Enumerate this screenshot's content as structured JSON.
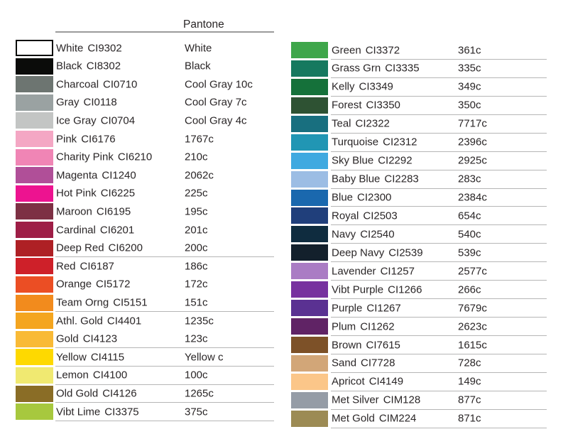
{
  "header": {
    "pantone_label": "Pantone"
  },
  "columns": {
    "left": {
      "rows": [
        {
          "name": "White",
          "code": "CI9302",
          "pantone": "White",
          "hex": "#ffffff",
          "underline": false
        },
        {
          "name": "Black",
          "code": "CI8302",
          "pantone": "Black",
          "hex": "#0b0c0a",
          "underline": false
        },
        {
          "name": "Charcoal",
          "code": "CI0710",
          "pantone": "Cool Gray 10c",
          "hex": "#6d7571",
          "underline": false
        },
        {
          "name": "Gray",
          "code": "CI0118",
          "pantone": "Cool Gray 7c",
          "hex": "#9aa2a2",
          "underline": false
        },
        {
          "name": "Ice Gray",
          "code": "CI0704",
          "pantone": "Cool Gray 4c",
          "hex": "#c3c5c4",
          "underline": false
        },
        {
          "name": "Pink",
          "code": "CI6176",
          "pantone": "1767c",
          "hex": "#f4a7c4",
          "underline": false
        },
        {
          "name": "Charity Pink",
          "code": "CI6210",
          "pantone": "210c",
          "hex": "#f085b5",
          "underline": false
        },
        {
          "name": "Magenta",
          "code": "CI1240",
          "pantone": "2062c",
          "hex": "#b04f98",
          "underline": false
        },
        {
          "name": "Hot Pink",
          "code": "CI6225",
          "pantone": "225c",
          "hex": "#ed1390",
          "underline": false
        },
        {
          "name": "Maroon",
          "code": "CI6195",
          "pantone": "195c",
          "hex": "#7d3044",
          "underline": false
        },
        {
          "name": "Cardinal",
          "code": "CI6201",
          "pantone": "201c",
          "hex": "#9e1e46",
          "underline": false
        },
        {
          "name": "Deep Red",
          "code": "CI6200",
          "pantone": "200c",
          "hex": "#ae2025",
          "underline": true
        },
        {
          "name": "Red",
          "code": "CI6187",
          "pantone": "186c",
          "hex": "#ce2029",
          "underline": false
        },
        {
          "name": "Orange",
          "code": "CI5172",
          "pantone": "172c",
          "hex": "#eb4e24",
          "underline": false
        },
        {
          "name": "Team Orng",
          "code": "CI5151",
          "pantone": "151c",
          "hex": "#f28b1d",
          "underline": true
        },
        {
          "name": "Athl. Gold",
          "code": "CI4401",
          "pantone": "1235c",
          "hex": "#f4a51f",
          "underline": false
        },
        {
          "name": "Gold",
          "code": "CI4123",
          "pantone": "123c",
          "hex": "#f9ba36",
          "underline": true
        },
        {
          "name": "Yellow",
          "code": "CI4115",
          "pantone": "Yellow c",
          "hex": "#fed900",
          "underline": true
        },
        {
          "name": "Lemon",
          "code": "CI4100",
          "pantone": "100c",
          "hex": "#f0e971",
          "underline": true
        },
        {
          "name": "Old Gold",
          "code": "CI4126",
          "pantone": "1265c",
          "hex": "#8a6d26",
          "underline": true
        },
        {
          "name": "Vibt Lime",
          "code": "CI3375",
          "pantone": "375c",
          "hex": "#a7c83e",
          "underline": true
        }
      ]
    },
    "right": {
      "rows": [
        {
          "name": "Green",
          "code": "CI3372",
          "pantone": "361c",
          "hex": "#3ea64a",
          "underline": true
        },
        {
          "name": "Grass Grn",
          "code": "CI3335",
          "pantone": "335c",
          "hex": "#16795f",
          "underline": true
        },
        {
          "name": "Kelly",
          "code": "CI3349",
          "pantone": "349c",
          "hex": "#15713a",
          "underline": true
        },
        {
          "name": "Forest",
          "code": "CI3350",
          "pantone": "350c",
          "hex": "#2e5233",
          "underline": true
        },
        {
          "name": "Teal",
          "code": "CI2322",
          "pantone": "7717c",
          "hex": "#186f7f",
          "underline": true
        },
        {
          "name": "Turquoise",
          "code": "CI2312",
          "pantone": "2396c",
          "hex": "#2196b4",
          "underline": true
        },
        {
          "name": "Sky Blue",
          "code": "CI2292",
          "pantone": "2925c",
          "hex": "#3fa9e0",
          "underline": true
        },
        {
          "name": "Baby Blue",
          "code": "CI2283",
          "pantone": "283c",
          "hex": "#9cbde4",
          "underline": true
        },
        {
          "name": "Blue",
          "code": "CI2300",
          "pantone": "2384c",
          "hex": "#1a68ae",
          "underline": true
        },
        {
          "name": "Royal",
          "code": "CI2503",
          "pantone": "654c",
          "hex": "#203f7b",
          "underline": true
        },
        {
          "name": "Navy",
          "code": "CI2540",
          "pantone": "540c",
          "hex": "#0f2c3f",
          "underline": true
        },
        {
          "name": "Deep Navy",
          "code": "CI2539",
          "pantone": "539c",
          "hex": "#13202c",
          "underline": true
        },
        {
          "name": "Lavender",
          "code": "CI1257",
          "pantone": "2577c",
          "hex": "#aa7cc4",
          "underline": true
        },
        {
          "name": "Vibt Purple",
          "code": "CI1266",
          "pantone": "266c",
          "hex": "#77319f",
          "underline": true
        },
        {
          "name": "Purple",
          "code": "CI1267",
          "pantone": "7679c",
          "hex": "#5a3192",
          "underline": true
        },
        {
          "name": "Plum",
          "code": "CI1262",
          "pantone": "2623c",
          "hex": "#602365",
          "underline": true
        },
        {
          "name": "Brown",
          "code": "CI7615",
          "pantone": "1615c",
          "hex": "#7d5128",
          "underline": true
        },
        {
          "name": "Sand",
          "code": "CI7728",
          "pantone": "728c",
          "hex": "#d2a678",
          "underline": true
        },
        {
          "name": "Apricot",
          "code": "CI4149",
          "pantone": "149c",
          "hex": "#fbc689",
          "underline": true
        },
        {
          "name": "Met Silver",
          "code": "CIM128",
          "pantone": "877c",
          "hex": "#959ca6",
          "underline": true
        },
        {
          "name": "Met Gold",
          "code": "CIM224",
          "pantone": "871c",
          "hex": "#9c8b54",
          "underline": true
        }
      ]
    }
  }
}
